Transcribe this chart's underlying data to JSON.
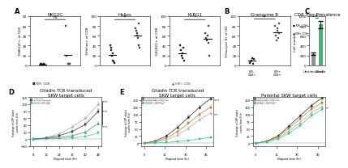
{
  "panel_A": {
    "title_NKG2C": "NKG2C",
    "title_Helios": "Helios",
    "title_KLRG1": "KLRG1",
    "ylabel_NKG2C": "%NKG2C+ of CD8",
    "ylabel_Helios": "%Helios+ of CD8",
    "ylabel_KLRG1": "%KLRG1+ of CD8",
    "ylim_NKG2C": [
      0,
      50
    ],
    "ylim_Helios": [
      0,
      100
    ],
    "ylim_KLRG1": [
      0,
      100
    ],
    "KIR_neg_NKG2C": [
      1,
      1.5,
      0.5,
      0.5,
      1,
      0.5
    ],
    "KIR_pos_NKG2C": [
      40,
      10,
      1,
      1,
      1
    ],
    "KIR_neg_Helios": [
      40,
      35,
      30,
      20,
      25,
      10,
      8,
      5
    ],
    "KIR_pos_Helios": [
      75,
      70,
      65,
      60,
      55,
      85,
      40,
      35
    ],
    "KIR_neg_KLRG1": [
      40,
      30,
      20,
      25,
      15,
      35,
      10
    ],
    "KIR_pos_KLRG1": [
      65,
      55,
      50,
      60,
      45,
      80,
      20
    ],
    "sig_NKG2C": "ns",
    "sig_Helios": "**",
    "sig_KLRG1": "*",
    "legend_neg": "KIR- CD8",
    "legend_pos": "KIR+ CD8"
  },
  "panel_B": {
    "title": "Granzyme B",
    "ylabel": "%Granzyme B+ of CD8",
    "ylim": [
      0,
      100
    ],
    "KIR_neg": [
      5,
      8,
      10,
      15,
      3,
      12
    ],
    "KIR_pos": [
      80,
      60,
      50,
      75,
      70,
      55,
      65,
      85
    ],
    "legend_neg": "KIR- CD8+",
    "legend_pos": "KIR+ CD8+",
    "sig": "**"
  },
  "panel_C": {
    "title": "CD8 Treg Prevalence",
    "ylabel": "Cell number",
    "ylim": [
      0,
      1000
    ],
    "bars": [
      "Unstimulated",
      "Gliadin"
    ],
    "values": [
      230,
      830
    ],
    "errors": [
      25,
      70
    ],
    "colors": [
      "#909090",
      "#3cb878"
    ],
    "sig": "**"
  },
  "panel_D": {
    "title1": "Gliadin TCR transduced",
    "title2": "SKW target cells",
    "xlabel": "Elapsed time (hr)",
    "ylabel": "%change in GFP object\ncounts from 8 hr",
    "ylim": [
      -20,
      120
    ],
    "xlim": [
      6,
      50
    ],
    "xticks": [
      8,
      16,
      24,
      32,
      40,
      48
    ],
    "time": [
      8,
      16,
      24,
      32,
      40,
      48
    ],
    "series_labels": [
      "0 CD8 Treg",
      "87.5-125 CD8 Treg",
      "175-250 CD8 Treg",
      "350-500 CD8 Treg"
    ],
    "series_colors": [
      "#aaaaaa",
      "#333333",
      "#3a8c60",
      "#2ecc88"
    ],
    "series_markers": [
      "o",
      "s",
      "^",
      "s"
    ],
    "series_values": [
      [
        0,
        5,
        15,
        35,
        60,
        100
      ],
      [
        0,
        3,
        10,
        22,
        42,
        80
      ],
      [
        0,
        2,
        5,
        10,
        20,
        45
      ],
      [
        0,
        1,
        2,
        4,
        8,
        18
      ]
    ],
    "series_errors": [
      [
        2,
        2,
        3,
        4,
        5,
        6
      ],
      [
        2,
        2,
        3,
        3,
        4,
        5
      ],
      [
        1,
        1,
        2,
        2,
        3,
        4
      ],
      [
        1,
        1,
        1,
        2,
        2,
        3
      ]
    ],
    "sig_labels": [
      "****",
      "****",
      "****"
    ]
  },
  "panel_E": {
    "title1": "Gliadin TCR transduced",
    "title2": "SKW target cells",
    "xlabel": "Elapsed time (hr)",
    "ylabel": "%change in GFP object\ncounts from 8 hr",
    "ylim": [
      -10,
      160
    ],
    "xlim": [
      -2,
      50
    ],
    "xticks": [
      0,
      15,
      30,
      45
    ],
    "time": [
      0,
      8,
      16,
      24,
      32,
      40,
      48
    ],
    "series_labels": [
      "unstimulated target only",
      "unstimulated +CD8 Treg",
      "+gliadin +target only",
      "+gliadin +CD8 Treg"
    ],
    "series_colors": [
      "#222222",
      "#cc7722",
      "#aaaaaa",
      "#2ecc88"
    ],
    "series_markers": [
      "o",
      "s",
      "^",
      "s"
    ],
    "series_values": [
      [
        0,
        8,
        25,
        55,
        90,
        125,
        155
      ],
      [
        0,
        5,
        18,
        40,
        70,
        100,
        125
      ],
      [
        0,
        4,
        12,
        28,
        52,
        82,
        105
      ],
      [
        0,
        1,
        3,
        6,
        10,
        16,
        20
      ]
    ],
    "series_errors": [
      [
        1,
        2,
        3,
        4,
        5,
        6,
        7
      ],
      [
        1,
        2,
        3,
        4,
        5,
        6,
        7
      ],
      [
        1,
        2,
        3,
        4,
        5,
        6,
        7
      ],
      [
        1,
        1,
        1,
        2,
        2,
        2,
        3
      ]
    ],
    "sig_labels": [
      "****",
      "***"
    ]
  },
  "panel_F": {
    "title1": "Parental SKW target cells",
    "xlabel": "Elapsed time (hr)",
    "ylabel": "%change in GFP object\ncounts from 8 hr",
    "ylim": [
      -10,
      160
    ],
    "xlim": [
      -2,
      50
    ],
    "xticks": [
      0,
      15,
      30,
      45
    ],
    "time": [
      0,
      8,
      16,
      24,
      32,
      40,
      48
    ],
    "series_labels": [
      "unstimulated target only",
      "unstimulated +CD8 Treg",
      "+gliadin +target only",
      "+gliadin +CD8 Treg"
    ],
    "series_colors": [
      "#222222",
      "#cc7722",
      "#aaaaaa",
      "#2ecc88"
    ],
    "series_markers": [
      "o",
      "s",
      "^",
      "s"
    ],
    "series_values": [
      [
        0,
        8,
        25,
        60,
        95,
        130,
        158
      ],
      [
        0,
        7,
        22,
        52,
        85,
        118,
        142
      ],
      [
        0,
        6,
        18,
        42,
        72,
        105,
        128
      ],
      [
        0,
        5,
        15,
        35,
        62,
        95,
        118
      ]
    ],
    "series_errors": [
      [
        1,
        2,
        3,
        4,
        5,
        6,
        7
      ],
      [
        1,
        2,
        3,
        4,
        5,
        6,
        7
      ],
      [
        1,
        2,
        3,
        4,
        5,
        6,
        7
      ],
      [
        1,
        2,
        3,
        4,
        5,
        6,
        7
      ]
    ],
    "sig_labels": [
      "**"
    ]
  },
  "bg_color": "#ffffff"
}
